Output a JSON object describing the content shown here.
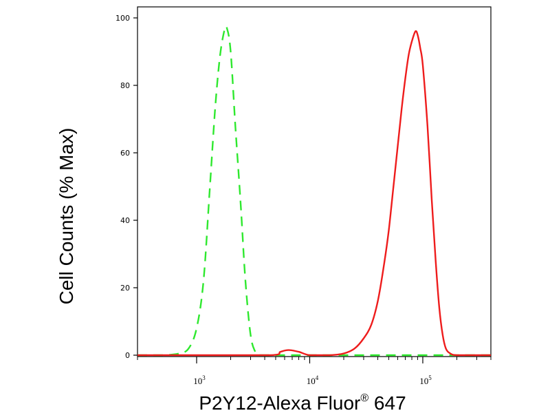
{
  "chart_data": {
    "type": "line",
    "xlabel": "P2Y12-Alexa Fluor",
    "xlabel_registered": "®",
    "xlabel_suffix": " 647",
    "ylabel": "Cell Counts (% Max)",
    "x_scale": "log",
    "xlim": [
      300,
      400000
    ],
    "ylim": [
      0,
      102
    ],
    "y_ticks": [
      0,
      20,
      40,
      60,
      80,
      100
    ],
    "y_tick_labels": [
      "0",
      "20",
      "40",
      "60",
      "80",
      "100"
    ],
    "x_ticks": [
      {
        "value": 1000,
        "base": "10",
        "exp": "3"
      },
      {
        "value": 10000,
        "base": "10",
        "exp": "4"
      },
      {
        "value": 100000,
        "base": "10",
        "exp": "5"
      }
    ],
    "grid": false,
    "series": [
      {
        "color": "#2ee82e",
        "style": "dashed",
        "x": [
          300,
          500,
          700,
          850,
          1000,
          1150,
          1300,
          1450,
          1600,
          1750,
          1850,
          2000,
          2200,
          2450,
          2700,
          3000,
          3300,
          3600,
          5000,
          10000,
          50000,
          400000
        ],
        "y": [
          0,
          0,
          0.5,
          2,
          8,
          22,
          48,
          72,
          88,
          96,
          97,
          90,
          68,
          45,
          22,
          6,
          1,
          0,
          0,
          0,
          0,
          0
        ]
      },
      {
        "color": "#ee1c1c",
        "style": "solid",
        "x": [
          300,
          1000,
          4500,
          5500,
          6500,
          8000,
          10000,
          15000,
          20000,
          25000,
          30000,
          35000,
          40000,
          45000,
          50000,
          55000,
          60000,
          65000,
          70000,
          75000,
          80000,
          86000,
          90000,
          95000,
          100000,
          110000,
          120000,
          130000,
          140000,
          150000,
          160000,
          175000,
          200000,
          300000,
          400000
        ],
        "y": [
          0,
          0,
          0,
          1,
          1.5,
          1,
          0,
          0,
          0.5,
          2,
          5,
          9,
          16,
          26,
          37,
          50,
          62,
          73,
          82,
          89,
          93,
          96,
          95,
          91,
          86,
          68,
          46,
          28,
          14,
          6,
          2,
          0.5,
          0,
          0,
          0
        ]
      }
    ]
  }
}
